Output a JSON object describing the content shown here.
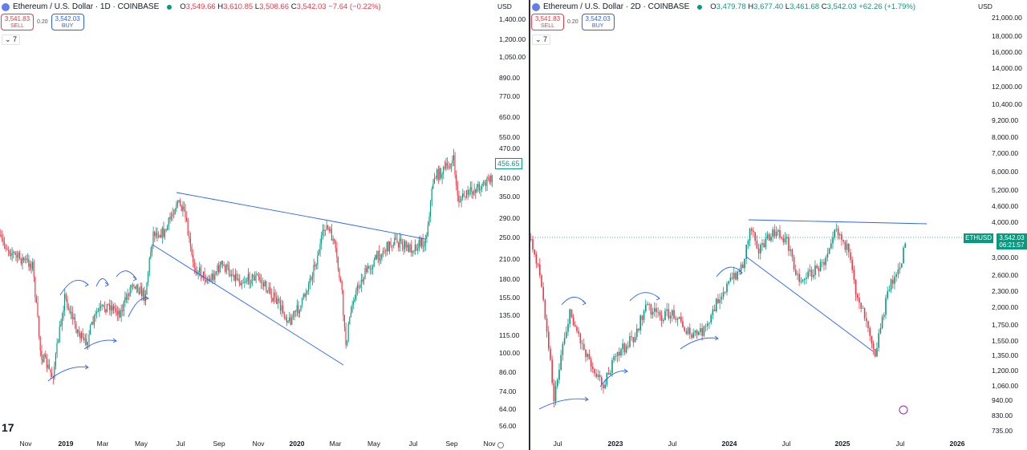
{
  "left": {
    "title": "Ethereum / U.S. Dollar · 1D · COINBASE",
    "ohlc": {
      "o": "3,549.66",
      "h": "3,610.85",
      "l": "3,508.66",
      "c": "3,542.03",
      "chg": "−7.64 (−0.22%)"
    },
    "sell": {
      "price": "3,541.83",
      "label": "SELL"
    },
    "spread": "0.20",
    "buy": {
      "price": "3,542.03",
      "label": "BUY"
    },
    "indicators": "7",
    "currency": "USD",
    "price_labels": [
      "1,400.00",
      "1,200.00",
      "1,050.00",
      "890.00",
      "770.00",
      "650.00",
      "550.00",
      "470.00",
      "410.00",
      "350.00",
      "290.00",
      "250.00",
      "210.00",
      "180.00",
      "155.00",
      "135.00",
      "115.00",
      "100.00",
      "86.00",
      "74.00",
      "64.00",
      "56.00"
    ],
    "time_labels": [
      "Nov",
      "2019",
      "Mar",
      "May",
      "Jul",
      "Sep",
      "Nov",
      "2020",
      "Mar",
      "May",
      "Jul",
      "Sep",
      "Nov"
    ],
    "last_price": "456.65"
  },
  "right": {
    "title": "Ethereum / U.S. Dollar · 2D · COINBASE",
    "ohlc": {
      "o": "3,479.78",
      "h": "3,677.40",
      "l": "3,461.68",
      "c": "3,542.03",
      "chg": "+62.26 (+1.79%)"
    },
    "sell": {
      "price": "3,541.83",
      "label": "SELL"
    },
    "spread": "0.20",
    "buy": {
      "price": "3,542.03",
      "label": "BUY"
    },
    "indicators": "7",
    "currency": "USD",
    "price_labels": [
      "21,000.00",
      "18,000.00",
      "16,000.00",
      "14,000.00",
      "12,000.00",
      "10,400.00",
      "9,200.00",
      "8,000.00",
      "7,000.00",
      "6,000.00",
      "5,200.00",
      "4,600.00",
      "4,000.00",
      "3,000.00",
      "2,600.00",
      "2,300.00",
      "2,000.00",
      "1,750.00",
      "1,550.00",
      "1,350.00",
      "1,200.00",
      "1,060.00",
      "940.00",
      "830.00",
      "735.00"
    ],
    "time_labels": [
      "Jul",
      "2023",
      "Jul",
      "2024",
      "Jul",
      "2025",
      "Jul",
      "2026"
    ],
    "symbol_badge": "ETHUSD",
    "last_price": "3,542.03",
    "countdown": "06:21:57"
  },
  "colors": {
    "up": "#089981",
    "down": "#f23645",
    "drawing": "#2962ff"
  }
}
